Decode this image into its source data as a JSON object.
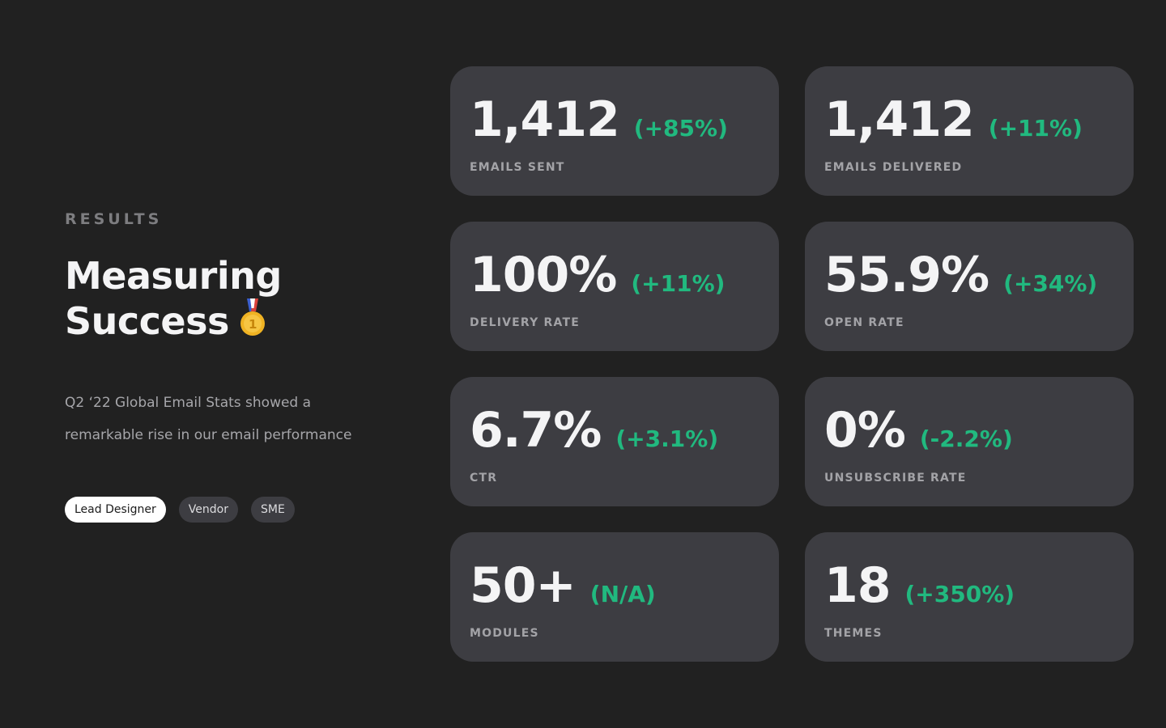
{
  "intro": {
    "eyebrow": "RESULTS",
    "title_line1": "Measuring",
    "title_line2": "Success",
    "title_icon": "medal-icon",
    "description": "Q2 ‘22 Global Email Stats showed a remarkable rise in our email performance"
  },
  "tags": [
    {
      "label": "Lead Designer",
      "active": true
    },
    {
      "label": "Vendor",
      "active": false
    },
    {
      "label": "SME",
      "active": false
    }
  ],
  "stats": [
    {
      "value": "1,412",
      "delta": "(+85%)",
      "label": "EMAILS SENT"
    },
    {
      "value": "1,412",
      "delta": "(+11%)",
      "label": "EMAILS DELIVERED"
    },
    {
      "value": "100%",
      "delta": "(+11%)",
      "label": "DELIVERY RATE"
    },
    {
      "value": "55.9%",
      "delta": "(+34%)",
      "label": "OPEN RATE"
    },
    {
      "value": "6.7%",
      "delta": "(+3.1%)",
      "label": "CTR"
    },
    {
      "value": "0%",
      "delta": "(-2.2%)",
      "label": "UNSUBSCRIBE RATE"
    },
    {
      "value": "50+",
      "delta": "(N/A)",
      "label": "MODULES"
    },
    {
      "value": "18",
      "delta": "(+350%)",
      "label": "THEMES"
    }
  ],
  "colors": {
    "background": "#212121",
    "card": "#3d3d42",
    "accent_green": "#21b97f",
    "tag_active_bg": "#ffffff"
  }
}
